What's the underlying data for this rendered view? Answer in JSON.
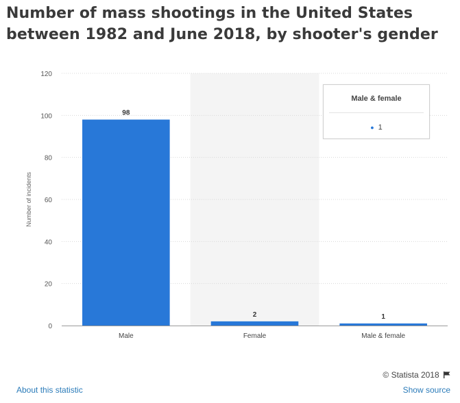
{
  "title": "Number of mass shootings in the United States between 1982 and June 2018, by shooter's gender",
  "chart_data": {
    "type": "bar",
    "title": "Number of mass shootings in the United States between 1982 and June 2018, by shooter's gender",
    "xlabel": "",
    "ylabel": "Number of incidents",
    "categories": [
      "Male",
      "Female",
      "Male & female"
    ],
    "values": [
      98,
      2,
      1
    ],
    "data_labels": [
      "98",
      "2",
      "1"
    ],
    "y_ticks": [
      0,
      20,
      40,
      60,
      80,
      100,
      120
    ],
    "y_tick_labels": [
      "0",
      "20",
      "40",
      "60",
      "80",
      "100",
      "120"
    ],
    "ylim": [
      0,
      120
    ],
    "grid": true,
    "highlighted_category": "Female",
    "bar_color": "#2878d8"
  },
  "tooltip": {
    "title": "Male & female",
    "value": "1"
  },
  "footer": {
    "copyright": "© Statista 2018",
    "about_link": "About this statistic",
    "source_link": "Show source"
  }
}
